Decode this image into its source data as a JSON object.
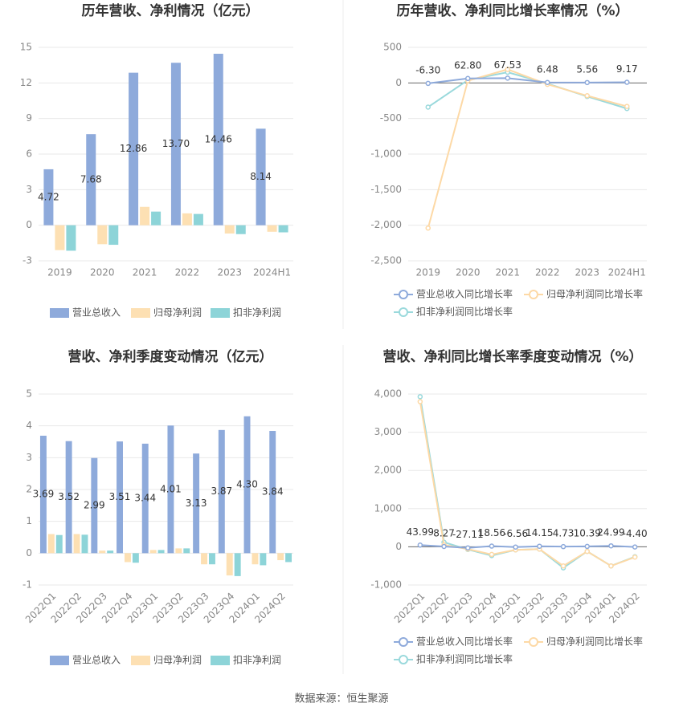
{
  "chart_data": [
    {
      "type": "bar",
      "title": "历年营收、净利情况（亿元）",
      "categories": [
        "2019",
        "2020",
        "2021",
        "2022",
        "2023",
        "2024H1"
      ],
      "series": [
        {
          "name": "营业总收入",
          "color": "#8eaadb",
          "values": [
            4.72,
            7.68,
            12.86,
            13.7,
            14.46,
            8.14
          ],
          "value_labels": [
            "4.72",
            "7.68",
            "12.86",
            "13.70",
            "14.46",
            "8.14"
          ]
        },
        {
          "name": "归母净利润",
          "color": "#fde0b3",
          "values": [
            -2.1,
            -1.6,
            1.55,
            1.0,
            -0.7,
            -0.55
          ]
        },
        {
          "name": "扣非净利润",
          "color": "#8dd4d8",
          "values": [
            -2.15,
            -1.65,
            1.15,
            0.95,
            -0.75,
            -0.6
          ]
        }
      ],
      "ylim": [
        -3,
        15
      ],
      "yticks": [
        -3,
        0,
        3,
        6,
        9,
        12,
        15
      ],
      "grid": true
    },
    {
      "type": "line",
      "title": "历年营收、净利同比增长率情况（%）",
      "categories": [
        "2019",
        "2020",
        "2021",
        "2022",
        "2023",
        "2024H1"
      ],
      "series": [
        {
          "name": "营业总收入同比增长率",
          "color": "#8eaadb",
          "values": [
            -6.3,
            62.8,
            67.53,
            6.48,
            5.56,
            9.17
          ],
          "value_labels": [
            "-6.30",
            "62.80",
            "67.53",
            "6.48",
            "5.56",
            "9.17"
          ]
        },
        {
          "name": "归母净利润同比增长率",
          "color": "#fdd9a6",
          "values": [
            -2040,
            30,
            190,
            -20,
            -180,
            -330
          ]
        },
        {
          "name": "扣非净利润同比增长率",
          "color": "#9ad9dc",
          "values": [
            -340,
            40,
            150,
            -10,
            -190,
            -360
          ]
        }
      ],
      "ylim": [
        -2500,
        500
      ],
      "yticks": [
        {
          "value": -2500,
          "label": "-2,500"
        },
        {
          "value": -2000,
          "label": "-2,000"
        },
        {
          "value": -1500,
          "label": "-1,500"
        },
        {
          "value": -1000,
          "label": "-1,000"
        },
        -500,
        0,
        500
      ],
      "grid": true
    },
    {
      "type": "bar",
      "title": "营收、净利季度变动情况（亿元）",
      "categories": [
        "2022Q1",
        "2022Q2",
        "2022Q3",
        "2022Q4",
        "2023Q1",
        "2023Q2",
        "2023Q3",
        "2023Q4",
        "2024Q1",
        "2024Q2"
      ],
      "series": [
        {
          "name": "营业总收入",
          "color": "#8eaadb",
          "values": [
            3.69,
            3.52,
            2.99,
            3.51,
            3.44,
            4.01,
            3.13,
            3.87,
            4.3,
            3.84
          ],
          "value_labels": [
            "3.69",
            "3.52",
            "2.99",
            "3.51",
            "3.44",
            "4.01",
            "3.13",
            "3.87",
            "4.30",
            "3.84"
          ]
        },
        {
          "name": "归母净利润",
          "color": "#fde0b3",
          "values": [
            0.6,
            0.6,
            0.08,
            -0.28,
            0.1,
            0.15,
            -0.35,
            -0.7,
            -0.35,
            -0.22
          ]
        },
        {
          "name": "扣非净利润",
          "color": "#8dd4d8",
          "values": [
            0.57,
            0.58,
            0.08,
            -0.3,
            0.1,
            0.15,
            -0.35,
            -0.72,
            -0.38,
            -0.28
          ]
        }
      ],
      "ylim": [
        -1,
        5
      ],
      "yticks": [
        -1,
        0,
        1,
        2,
        3,
        4,
        5
      ],
      "grid": true
    },
    {
      "type": "line",
      "title": "营收、净利同比增长率季度变动情况（%）",
      "categories": [
        "2022Q1",
        "2022Q2",
        "2022Q3",
        "2022Q4",
        "2023Q1",
        "2023Q2",
        "2023Q3",
        "2023Q4",
        "2024Q1",
        "2024Q2"
      ],
      "series": [
        {
          "name": "营业总收入同比增长率",
          "color": "#8eaadb",
          "values": [
            43.99,
            8.27,
            -27.11,
            18.56,
            -6.56,
            14.15,
            4.73,
            10.39,
            24.99,
            -4.4
          ],
          "value_labels": [
            "43.99",
            "8.27",
            "-27.11",
            "18.56",
            "-6.56",
            "14.15",
            "4.73",
            "10.39",
            "24.99",
            "-4.40"
          ]
        },
        {
          "name": "归母净利润同比增长率",
          "color": "#fdd9a6",
          "values": [
            3800,
            50,
            -60,
            -200,
            -80,
            -60,
            -500,
            -120,
            -500,
            -270
          ]
        },
        {
          "name": "扣非净利润同比增长率",
          "color": "#9ad9dc",
          "values": [
            3930,
            120,
            -70,
            -230,
            -80,
            -60,
            -550,
            -120,
            -500,
            -260
          ]
        }
      ],
      "ylim": [
        -1000,
        4000
      ],
      "yticks": [
        {
          "value": -1000,
          "label": "-1,000"
        },
        0,
        {
          "value": 1000,
          "label": "1,000"
        },
        {
          "value": 2000,
          "label": "2,000"
        },
        {
          "value": 3000,
          "label": "3,000"
        },
        {
          "value": 4000,
          "label": "4,000"
        }
      ],
      "grid": true
    }
  ],
  "source": "数据来源：恒生聚源"
}
